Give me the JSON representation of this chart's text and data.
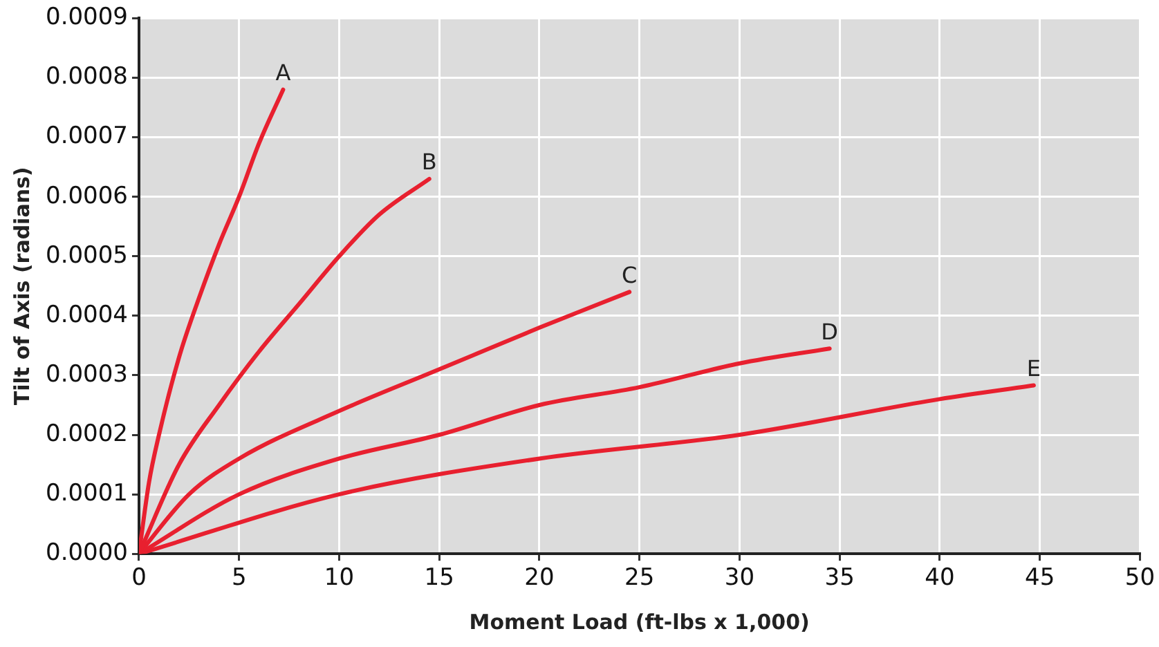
{
  "chart_data": {
    "type": "line",
    "xlabel": "Moment Load (ft-lbs x 1,000)",
    "ylabel": "Tilt of Axis (radians)",
    "xlim": [
      0,
      50
    ],
    "xticks": [
      0,
      5,
      10,
      15,
      20,
      25,
      30,
      35,
      40,
      45,
      50
    ],
    "ylim": [
      0,
      0.0009
    ],
    "yticks": [
      {
        "value": 0,
        "label": "0.0000"
      },
      {
        "value": 0.0001,
        "label": "0.0001"
      },
      {
        "value": 0.0002,
        "label": "0.0002"
      },
      {
        "value": 0.0003,
        "label": "0.0003"
      },
      {
        "value": 0.0004,
        "label": "0.0004"
      },
      {
        "value": 0.0005,
        "label": "0.0005"
      },
      {
        "value": 0.0006,
        "label": "0.0006"
      },
      {
        "value": 0.0007,
        "label": "0.0007"
      },
      {
        "value": 0.0008,
        "label": "0.0008"
      },
      {
        "value": 0.0009,
        "label": "0.0009"
      }
    ],
    "grid": true,
    "legend": false,
    "marker": "none",
    "line_style": "solid",
    "series": [
      {
        "name": "A",
        "color": "#e8202f",
        "x": [
          0,
          0.5,
          1,
          2,
          3,
          4,
          5,
          6,
          7.2
        ],
        "values": [
          0,
          0.00012,
          0.0002,
          0.00033,
          0.00043,
          0.00052,
          0.0006,
          0.00069,
          0.00078
        ]
      },
      {
        "name": "B",
        "color": "#e8202f",
        "x": [
          0,
          2,
          4,
          6,
          8,
          10,
          12,
          14.5
        ],
        "values": [
          0,
          0.00015,
          0.00025,
          0.00034,
          0.00042,
          0.0005,
          0.00057,
          0.00063
        ]
      },
      {
        "name": "C",
        "color": "#e8202f",
        "x": [
          0,
          2.5,
          5,
          10,
          15,
          20,
          24.5
        ],
        "values": [
          0,
          0.0001,
          0.00016,
          0.00024,
          0.00031,
          0.00038,
          0.00044
        ]
      },
      {
        "name": "D",
        "color": "#e8202f",
        "x": [
          0,
          5,
          10,
          15,
          20,
          25,
          30,
          34.5
        ],
        "values": [
          0,
          0.0001,
          0.00016,
          0.0002,
          0.00025,
          0.00028,
          0.00032,
          0.000345
        ]
      },
      {
        "name": "E",
        "color": "#e8202f",
        "x": [
          0,
          10,
          20,
          30,
          40,
          44.7
        ],
        "values": [
          0,
          0.0001,
          0.00016,
          0.0002,
          0.00026,
          0.000283
        ]
      }
    ]
  }
}
